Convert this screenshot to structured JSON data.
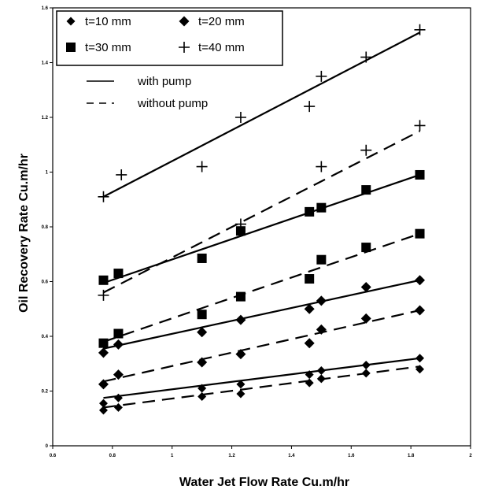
{
  "chart_data": {
    "type": "scatter",
    "title": "",
    "xlabel": "Water Jet Flow Rate Cu.m/hr",
    "ylabel": "Oil Recovery Rate Cu.m/hr",
    "xlim": [
      0.6,
      2
    ],
    "ylim": [
      0,
      1.6
    ],
    "x_ticks": [
      "0.6",
      "0.8",
      "1",
      "1.2",
      "1.4",
      "1.6",
      "1.8",
      "2"
    ],
    "y_ticks": [
      "0",
      "0.2",
      "0.4",
      "0.6",
      "0.8",
      "1",
      "1.2",
      "1.4",
      "1.6"
    ],
    "grid": false,
    "legend_position": "top-left",
    "marker_legend": [
      {
        "label": "t=10 mm",
        "marker": "diamond-small"
      },
      {
        "label": "t=20 mm",
        "marker": "diamond"
      },
      {
        "label": "t=30 mm",
        "marker": "square"
      },
      {
        "label": "t=40 mm",
        "marker": "plus"
      }
    ],
    "line_legend": [
      {
        "label": "with pump",
        "style": "solid"
      },
      {
        "label": "without pump",
        "style": "dashed"
      }
    ],
    "series": [
      {
        "marker": "diamond-small",
        "condition": "with pump",
        "x": [
          0.77,
          0.82,
          1.1,
          1.23,
          1.46,
          1.5,
          1.65,
          1.83
        ],
        "y": [
          0.155,
          0.175,
          0.21,
          0.225,
          0.26,
          0.275,
          0.295,
          0.32
        ],
        "fit": [
          [
            0.77,
            0.175
          ],
          [
            1.83,
            0.32
          ]
        ]
      },
      {
        "marker": "diamond-small",
        "condition": "without pump",
        "x": [
          0.77,
          0.82,
          1.1,
          1.23,
          1.46,
          1.5,
          1.65,
          1.83
        ],
        "y": [
          0.13,
          0.14,
          0.18,
          0.19,
          0.23,
          0.245,
          0.265,
          0.28
        ],
        "fit": [
          [
            0.77,
            0.14
          ],
          [
            1.83,
            0.29
          ]
        ]
      },
      {
        "marker": "diamond",
        "condition": "with pump",
        "x": [
          0.77,
          0.82,
          1.1,
          1.23,
          1.46,
          1.5,
          1.65,
          1.83
        ],
        "y": [
          0.34,
          0.37,
          0.415,
          0.46,
          0.5,
          0.53,
          0.58,
          0.605
        ],
        "fit": [
          [
            0.77,
            0.355
          ],
          [
            1.83,
            0.605
          ]
        ]
      },
      {
        "marker": "diamond",
        "condition": "without pump",
        "x": [
          0.77,
          0.82,
          1.1,
          1.23,
          1.46,
          1.5,
          1.65,
          1.83
        ],
        "y": [
          0.225,
          0.26,
          0.305,
          0.335,
          0.375,
          0.425,
          0.465,
          0.495
        ],
        "fit": [
          [
            0.77,
            0.235
          ],
          [
            1.83,
            0.495
          ]
        ]
      },
      {
        "marker": "square",
        "condition": "with pump",
        "x": [
          0.77,
          0.82,
          1.1,
          1.23,
          1.46,
          1.5,
          1.65,
          1.83
        ],
        "y": [
          0.605,
          0.63,
          0.685,
          0.785,
          0.855,
          0.87,
          0.935,
          0.99
        ],
        "fit": [
          [
            0.77,
            0.595
          ],
          [
            1.83,
            0.99
          ]
        ]
      },
      {
        "marker": "square",
        "condition": "without pump",
        "x": [
          0.77,
          0.82,
          1.1,
          1.23,
          1.46,
          1.5,
          1.65,
          1.83
        ],
        "y": [
          0.375,
          0.41,
          0.48,
          0.545,
          0.61,
          0.68,
          0.725,
          0.775
        ],
        "fit": [
          [
            0.77,
            0.38
          ],
          [
            1.83,
            0.775
          ]
        ]
      },
      {
        "marker": "plus",
        "condition": "with pump",
        "x": [
          0.77,
          0.83,
          1.1,
          1.23,
          1.46,
          1.5,
          1.65,
          1.83
        ],
        "y": [
          0.91,
          0.99,
          1.02,
          1.2,
          1.24,
          1.35,
          1.42,
          1.52
        ],
        "fit": [
          [
            0.77,
            0.91
          ],
          [
            1.83,
            1.51
          ]
        ]
      },
      {
        "marker": "plus",
        "condition": "without pump",
        "x": [
          0.77,
          1.23,
          1.5,
          1.65,
          1.83
        ],
        "y": [
          0.55,
          0.81,
          1.02,
          1.08,
          1.17
        ],
        "fit": [
          [
            0.77,
            0.56
          ],
          [
            1.83,
            1.15
          ]
        ]
      }
    ]
  }
}
